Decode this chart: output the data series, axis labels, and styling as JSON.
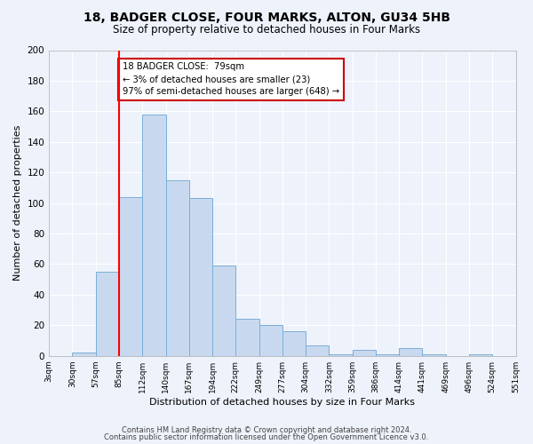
{
  "title": "18, BADGER CLOSE, FOUR MARKS, ALTON, GU34 5HB",
  "subtitle": "Size of property relative to detached houses in Four Marks",
  "xlabel": "Distribution of detached houses by size in Four Marks",
  "ylabel": "Number of detached properties",
  "bar_color": "#c8d9ef",
  "bar_edge_color": "#7aaed6",
  "background_color": "#eef2fb",
  "grid_color": "#ffffff",
  "bin_labels": [
    "3sqm",
    "30sqm",
    "57sqm",
    "85sqm",
    "112sqm",
    "140sqm",
    "167sqm",
    "194sqm",
    "222sqm",
    "249sqm",
    "277sqm",
    "304sqm",
    "332sqm",
    "359sqm",
    "386sqm",
    "414sqm",
    "441sqm",
    "469sqm",
    "496sqm",
    "524sqm",
    "551sqm"
  ],
  "counts": [
    0,
    2,
    55,
    104,
    158,
    115,
    103,
    59,
    24,
    20,
    16,
    7,
    1,
    4,
    1,
    5,
    1,
    0,
    1,
    0
  ],
  "red_line_bin": 3,
  "annotation_line1": "18 BADGER CLOSE:  79sqm",
  "annotation_line2": "← 3% of detached houses are smaller (23)",
  "annotation_line3": "97% of semi-detached houses are larger (648) →",
  "annotation_box_color": "#ffffff",
  "annotation_box_edge_color": "#cc0000",
  "ylim": [
    0,
    200
  ],
  "yticks": [
    0,
    20,
    40,
    60,
    80,
    100,
    120,
    140,
    160,
    180,
    200
  ],
  "footer1": "Contains HM Land Registry data © Crown copyright and database right 2024.",
  "footer2": "Contains public sector information licensed under the Open Government Licence v3.0."
}
